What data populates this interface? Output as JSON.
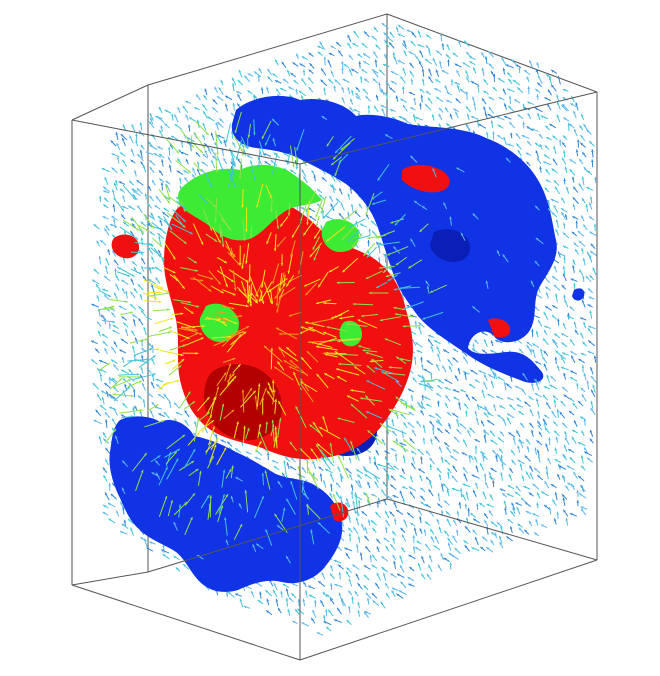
{
  "colors": {
    "background": "#ffffff",
    "frame": "#555555",
    "arrow_light": "#5ab8ea",
    "arrow_cyan": "#3fc4d8",
    "arrow_mid": "#2f86d8",
    "arrow_yellow": "#f2e417",
    "arrow_orange": "#f29a1a",
    "arrow_green": "#8ee04a",
    "iso_blue": "#1133e6",
    "iso_blue_dark": "#0a1fb8",
    "iso_red": "#f01010",
    "iso_red_dark": "#b30000",
    "iso_green": "#3dea34"
  },
  "layers": [
    {
      "name": "bounding-box",
      "kind": "wireframe-cube"
    },
    {
      "name": "vector-field",
      "kind": "arrow-glyphs"
    },
    {
      "name": "isosurface-blue",
      "kind": "isosurface"
    },
    {
      "name": "isosurface-red",
      "kind": "isosurface"
    },
    {
      "name": "isosurface-green",
      "kind": "isosurface"
    }
  ]
}
